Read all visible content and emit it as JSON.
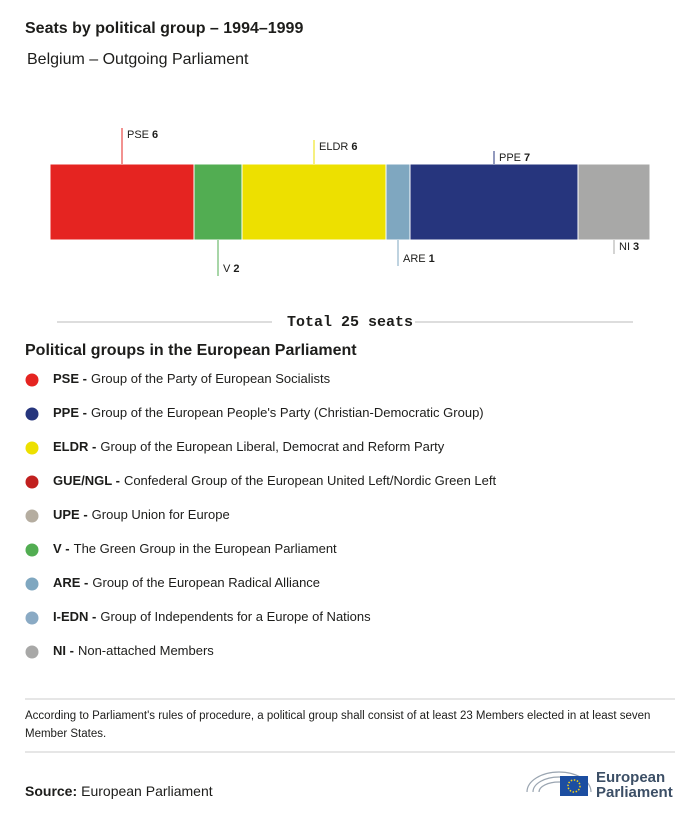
{
  "chart_data": {
    "type": "stacked-bar",
    "title": "Seats by political group – 1994–1999",
    "subtitle": "Belgium – Outgoing Parliament",
    "categories": [
      "PSE",
      "V",
      "ELDR",
      "ARE",
      "PPE",
      "NI"
    ],
    "values": [
      6,
      2,
      6,
      1,
      7,
      3
    ],
    "colors": [
      "#e52421",
      "#52ad52",
      "#ede000",
      "#7fa7c0",
      "#26357d",
      "#a8a8a7"
    ],
    "total_label": "Total 25 seats",
    "legend_title": "Political groups in the European Parliament",
    "legend": [
      {
        "abbr": "PSE -",
        "text": "Group of the Party of European Socialists",
        "color": "#e52421"
      },
      {
        "abbr": "PPE -",
        "text": "Group of the European People's Party (Christian-Democratic Group)",
        "color": "#26357d"
      },
      {
        "abbr": "ELDR -",
        "text": "Group of the European Liberal, Democrat and Reform Party",
        "color": "#ede000"
      },
      {
        "abbr": "GUE/NGL -",
        "text": "Confederal Group of the European United Left/Nordic Green Left",
        "color": "#c1201f"
      },
      {
        "abbr": "UPE -",
        "text": "Group Union for Europe",
        "color": "#b5ada0"
      },
      {
        "abbr": "V -",
        "text": "The Green Group in the European Parliament",
        "color": "#52ad52"
      },
      {
        "abbr": "ARE -",
        "text": "Group of the European Radical Alliance",
        "color": "#7fa7c0"
      },
      {
        "abbr": "I-EDN -",
        "text": "Group of Independents for a Europe of Nations",
        "color": "#8aaac4"
      },
      {
        "abbr": "NI -",
        "text": "Non-attached Members",
        "color": "#a8a8a7"
      }
    ],
    "note": "According to Parliament's rules of procedure, a political group shall consist of at least 23 Members elected in at least seven Member States.",
    "source_label": "Source:",
    "source": "European Parliament",
    "logo": [
      "European",
      "Parliament"
    ]
  }
}
